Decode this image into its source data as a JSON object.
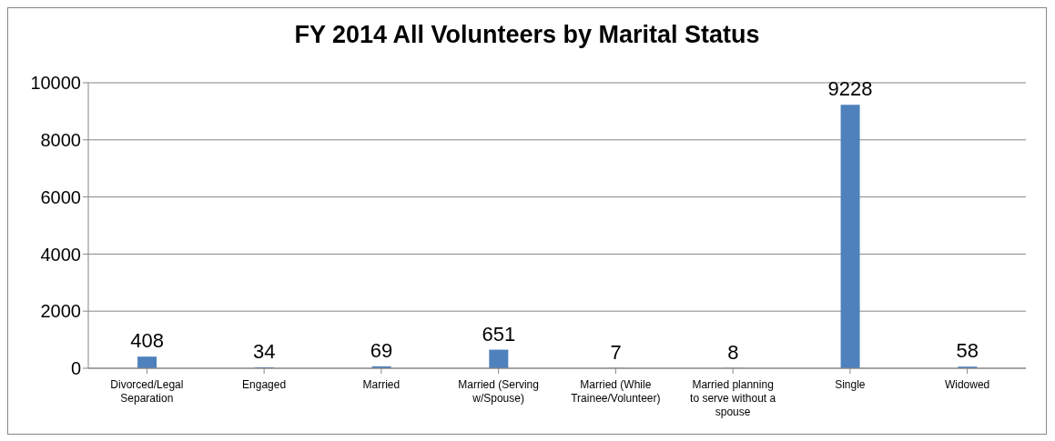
{
  "chart_data": {
    "type": "bar",
    "title": "FY 2014 All Volunteers by Marital Status",
    "categories": [
      "Divorced/Legal Separation",
      "Engaged",
      "Married",
      "Married (Serving w/Spouse)",
      "Married (While Trainee/Volunteer)",
      "Married planning to serve without a spouse",
      "Single",
      "Widowed"
    ],
    "values": [
      408,
      34,
      69,
      651,
      7,
      8,
      9228,
      58
    ],
    "color": "#4f81bd",
    "ylim": [
      0,
      10000
    ],
    "yticks": [
      0,
      2000,
      4000,
      6000,
      8000,
      10000
    ],
    "grid": "y",
    "data_labels": true
  }
}
